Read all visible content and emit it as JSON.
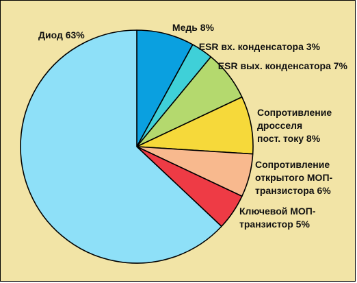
{
  "chart_data": {
    "type": "pie",
    "start_angle_deg": 0,
    "direction": "clockwise",
    "background_color": "#f2e4a6",
    "edge_color": "#000000",
    "slices": [
      {
        "label": "Медь 8%",
        "lines": [
          "Медь 8%"
        ],
        "value": 8,
        "color": "#0aa0e0"
      },
      {
        "label": "ESR вх. конденсатора 3%",
        "lines": [
          "ESR вх. конденсатора 3%"
        ],
        "value": 3,
        "color": "#3fd0d8"
      },
      {
        "label": "ESR вых. конденсатора 7%",
        "lines": [
          "ESR вых. конденсатора 7%"
        ],
        "value": 7,
        "color": "#b4d96e"
      },
      {
        "label": "Сопротивление дросселя пост. току 8%",
        "lines": [
          "Сопротивление",
          "дросселя",
          "пост. току 8%"
        ],
        "value": 8,
        "color": "#f6d93a"
      },
      {
        "label": "Сопротивление открытого МОП-транзистора 6%",
        "lines": [
          "Сопротивление",
          "открытого МОП-",
          "транзистора 6%"
        ],
        "value": 6,
        "color": "#f8b98e"
      },
      {
        "label": "Ключевой МОП-транзистор 5%",
        "lines": [
          "Ключевой МОП-",
          "транзистор 5%"
        ],
        "value": 5,
        "color": "#ee3b45"
      },
      {
        "label": "Диод 63%",
        "lines": [
          "Диод 63%"
        ],
        "value": 63,
        "color": "#8ee0f8"
      }
    ]
  }
}
